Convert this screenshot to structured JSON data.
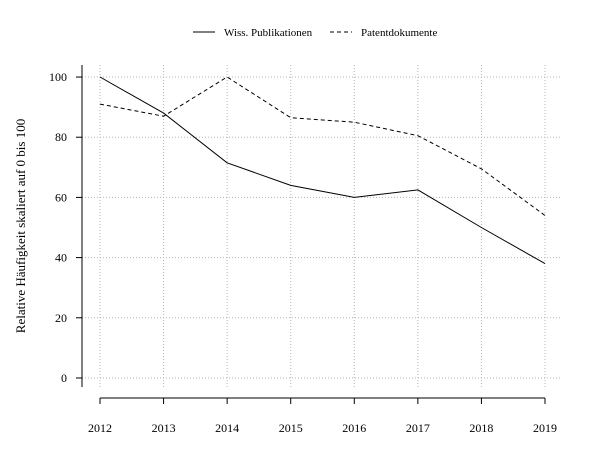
{
  "chart_data": {
    "type": "line",
    "title": "",
    "xlabel": "",
    "ylabel": "Relative Häufigkeit skaliert auf 0 bis 100",
    "x": [
      "2012",
      "2013",
      "2014",
      "2015",
      "2016",
      "2017",
      "2018",
      "2019"
    ],
    "yticks": [
      0,
      20,
      40,
      60,
      80,
      100
    ],
    "ylim": [
      -3,
      104
    ],
    "grid": true,
    "legend_position": "top-center",
    "series": [
      {
        "name": "Wiss. Publikationen",
        "style": "solid",
        "color": "#000000",
        "values": [
          100,
          88,
          71.5,
          64,
          60,
          62.5,
          50,
          38
        ]
      },
      {
        "name": "Patentdokumente",
        "style": "dashed",
        "color": "#000000",
        "values": [
          91,
          87,
          100,
          86.5,
          85,
          80.5,
          69.5,
          54
        ]
      }
    ]
  }
}
